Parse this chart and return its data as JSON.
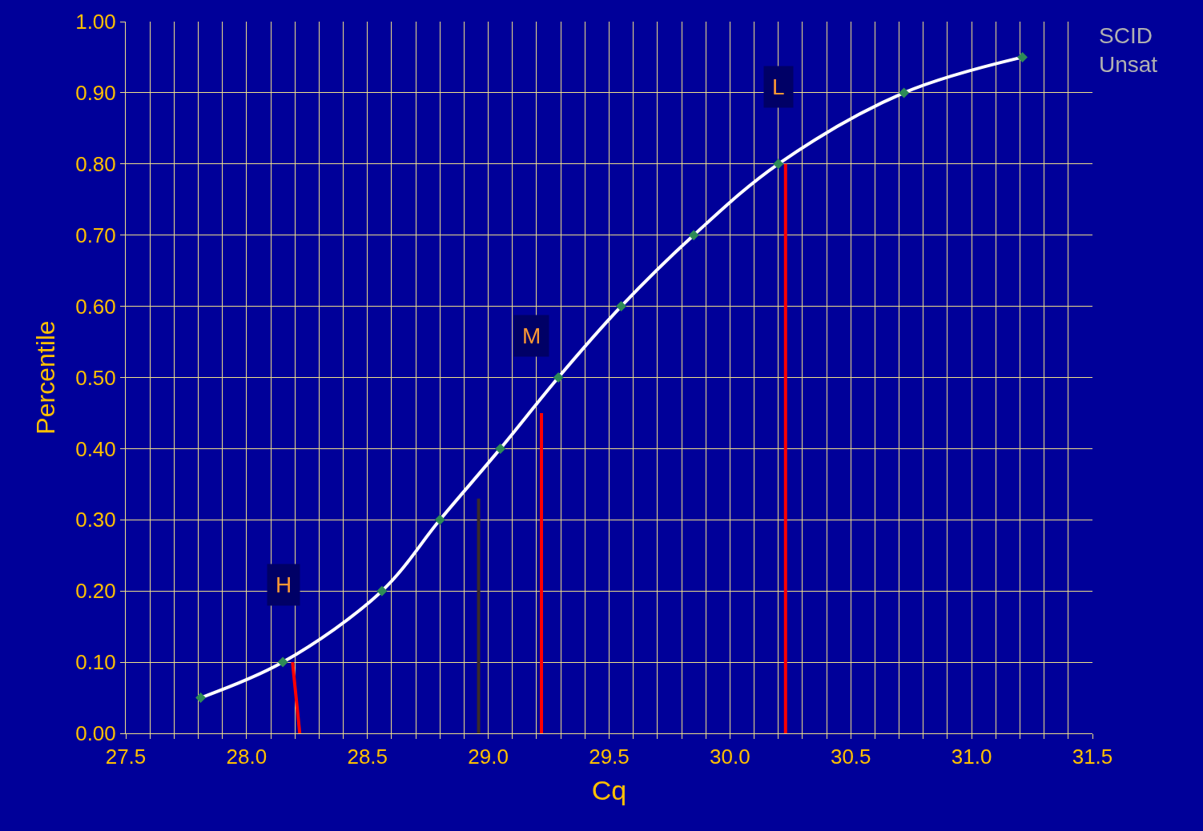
{
  "chart_data": {
    "type": "line",
    "xlabel": "Cq",
    "ylabel": "Percentile",
    "xlim": [
      27.5,
      31.5
    ],
    "xticks": [
      {
        "value": 27.5,
        "label": "27.5"
      },
      {
        "value": 27.6,
        "label": null
      },
      {
        "value": 27.7,
        "label": null
      },
      {
        "value": 27.8,
        "label": null
      },
      {
        "value": 27.9,
        "label": null
      },
      {
        "value": 28.0,
        "label": "28.0"
      },
      {
        "value": 28.1,
        "label": null
      },
      {
        "value": 28.2,
        "label": null
      },
      {
        "value": 28.3,
        "label": null
      },
      {
        "value": 28.4,
        "label": null
      },
      {
        "value": 28.5,
        "label": "28.5"
      },
      {
        "value": 28.6,
        "label": null
      },
      {
        "value": 28.7,
        "label": null
      },
      {
        "value": 28.8,
        "label": null
      },
      {
        "value": 28.9,
        "label": null
      },
      {
        "value": 29.0,
        "label": "29.0"
      },
      {
        "value": 29.1,
        "label": null
      },
      {
        "value": 29.2,
        "label": null
      },
      {
        "value": 29.3,
        "label": null
      },
      {
        "value": 29.4,
        "label": null
      },
      {
        "value": 29.5,
        "label": "29.5"
      },
      {
        "value": 29.6,
        "label": null
      },
      {
        "value": 29.7,
        "label": null
      },
      {
        "value": 29.8,
        "label": null
      },
      {
        "value": 29.9,
        "label": null
      },
      {
        "value": 30.0,
        "label": "30.0"
      },
      {
        "value": 30.1,
        "label": null
      },
      {
        "value": 30.2,
        "label": null
      },
      {
        "value": 30.3,
        "label": null
      },
      {
        "value": 30.4,
        "label": null
      },
      {
        "value": 30.5,
        "label": "30.5"
      },
      {
        "value": 30.6,
        "label": null
      },
      {
        "value": 30.7,
        "label": null
      },
      {
        "value": 30.8,
        "label": null
      },
      {
        "value": 30.9,
        "label": null
      },
      {
        "value": 31.0,
        "label": "31.0"
      },
      {
        "value": 31.1,
        "label": null
      },
      {
        "value": 31.2,
        "label": null
      },
      {
        "value": 31.3,
        "label": null
      },
      {
        "value": 31.4,
        "label": null
      },
      {
        "value": 31.5,
        "label": "31.5"
      }
    ],
    "ylim": [
      0,
      1
    ],
    "yticks": [
      {
        "value": 0,
        "label": "0.00"
      },
      {
        "value": 0.1,
        "label": "0.10"
      },
      {
        "value": 0.2,
        "label": "0.20"
      },
      {
        "value": 0.3,
        "label": "0.30"
      },
      {
        "value": 0.4,
        "label": "0.40"
      },
      {
        "value": 0.5,
        "label": "0.50"
      },
      {
        "value": 0.6,
        "label": "0.60"
      },
      {
        "value": 0.7,
        "label": "0.70"
      },
      {
        "value": 0.8,
        "label": "0.80"
      },
      {
        "value": 0.9,
        "label": "0.90"
      },
      {
        "value": 1.0,
        "label": "1.00"
      }
    ],
    "grid": true,
    "series": [
      {
        "color": "#ffffff",
        "marker": "none",
        "x": [
          27.81,
          28.15,
          28.56,
          28.8,
          29.05,
          29.29,
          29.55,
          29.85,
          30.2,
          30.72,
          31.21
        ],
        "values": [
          0.05,
          0.1,
          0.2,
          0.3,
          0.4,
          0.5,
          0.6,
          0.7,
          0.8,
          0.9,
          0.95
        ]
      },
      {
        "type": "scatter",
        "color": "#2e8b57",
        "marker": "diamond",
        "x": [
          27.81,
          28.15,
          28.56,
          28.8,
          29.05,
          29.29,
          29.55,
          29.85,
          30.2,
          30.72,
          31.21
        ],
        "values": [
          0.05,
          0.1,
          0.2,
          0.3,
          0.4,
          0.5,
          0.6,
          0.7,
          0.8,
          0.9,
          0.95
        ]
      },
      {
        "color": "#ff0000",
        "marker": "none",
        "x": [
          28.22,
          28.19
        ],
        "values": [
          0.0,
          0.1
        ]
      },
      {
        "color": "#3a2a2a",
        "marker": "none",
        "x": [
          28.96,
          28.96
        ],
        "values": [
          0.0,
          0.33
        ]
      },
      {
        "color": "#ff0000",
        "marker": "none",
        "x": [
          29.22,
          29.22
        ],
        "values": [
          0.0,
          0.45
        ]
      },
      {
        "color": "#ff0000",
        "marker": "none",
        "x": [
          30.23,
          30.23
        ],
        "values": [
          0.0,
          0.8
        ]
      }
    ],
    "annotations": [
      {
        "text": "H",
        "x": 28.19,
        "y": 0.1
      },
      {
        "text": "M",
        "x": 29.22,
        "y": 0.45
      },
      {
        "text": "L",
        "x": 30.23,
        "y": 0.8
      },
      "SCID\nUnsat"
    ]
  }
}
